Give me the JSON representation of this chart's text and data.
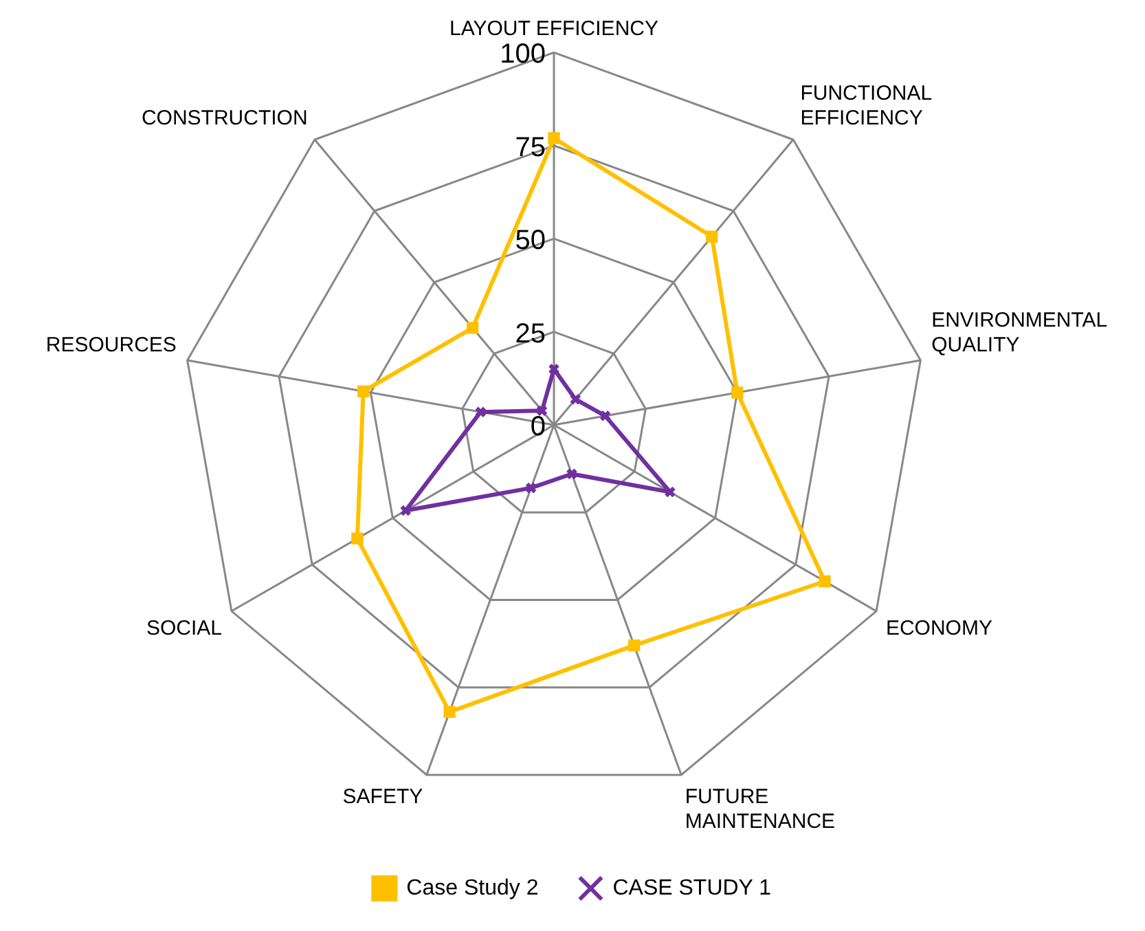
{
  "chart_data": {
    "type": "radar",
    "categories": [
      "LAYOUT EFFICIENCY",
      "FUNCTIONAL EFFICIENCY",
      "ENVIRONMENTAL QUALITY",
      "ECONOMY",
      "FUTURE MAINTENANCE",
      "SAFETY",
      "SOCIAL",
      "RESOURCES",
      "CONSTRUCTION"
    ],
    "series": [
      {
        "name": "Case Study 2",
        "color": "#ffc000",
        "marker": "square",
        "values": [
          77,
          66,
          50,
          84,
          63,
          82,
          61,
          52,
          34
        ]
      },
      {
        "name": "CASE STUDY 1",
        "color": "#7030a0",
        "marker": "cross",
        "values": [
          15,
          9,
          14,
          36,
          14,
          18,
          46,
          20,
          5
        ]
      }
    ],
    "ylim": [
      0,
      100
    ],
    "yticks": [
      0,
      25,
      50,
      75,
      100
    ],
    "grid": true,
    "legend": "bottom"
  }
}
